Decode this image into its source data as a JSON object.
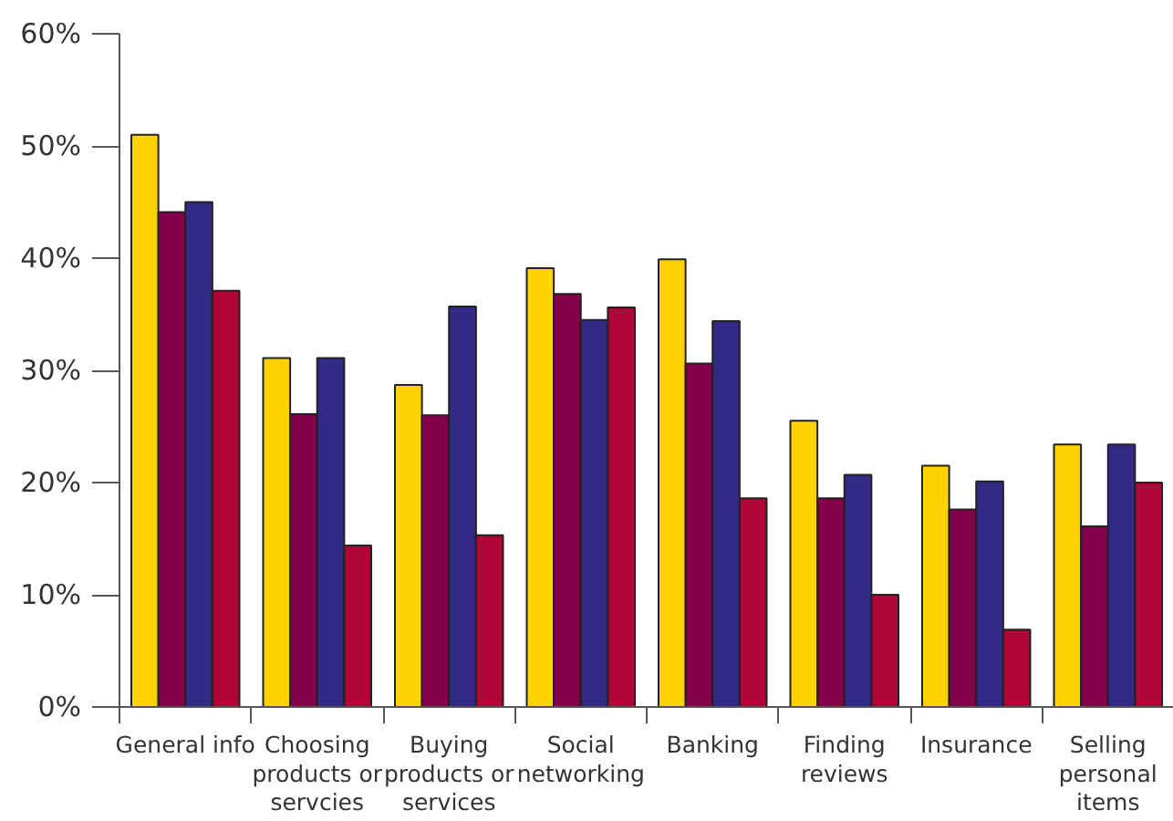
{
  "chart_data": {
    "type": "bar",
    "categories": [
      "General info",
      "Choosing products or servcies",
      "Buying products or services",
      "Social networking",
      "Banking",
      "Finding reviews",
      "Insurance",
      "Selling personal items"
    ],
    "series": [
      {
        "color": "#ffd200",
        "values": [
          51.0,
          31.1,
          28.7,
          39.1,
          39.9,
          25.5,
          21.5,
          23.4
        ]
      },
      {
        "color": "#85004b",
        "values": [
          44.1,
          26.1,
          26.0,
          36.8,
          30.6,
          18.6,
          17.6,
          16.1
        ]
      },
      {
        "color": "#332a86",
        "values": [
          45.0,
          31.1,
          35.7,
          34.5,
          34.4,
          20.7,
          20.1,
          23.4
        ]
      },
      {
        "color": "#b00538",
        "values": [
          37.1,
          14.4,
          15.3,
          35.6,
          18.6,
          10.0,
          6.9,
          20.0
        ]
      }
    ],
    "ylim": [
      0,
      60
    ],
    "yticks": [
      {
        "value": 0,
        "label": "0%"
      },
      {
        "value": 10,
        "label": "10%"
      },
      {
        "value": 20,
        "label": "20%"
      },
      {
        "value": 30,
        "label": "30%"
      },
      {
        "value": 40,
        "label": "40%"
      },
      {
        "value": 50,
        "label": "50%"
      },
      {
        "value": 60,
        "label": "60%"
      }
    ],
    "grid": false
  }
}
